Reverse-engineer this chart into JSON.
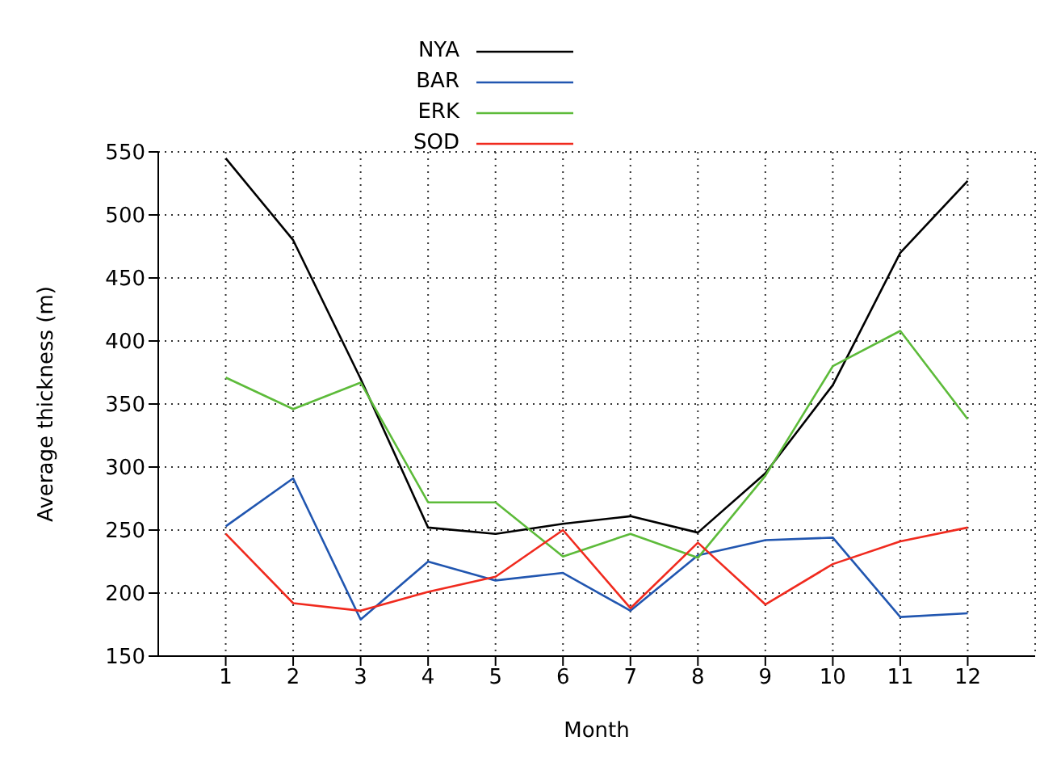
{
  "chart_data": {
    "type": "line",
    "xlabel": "Month",
    "ylabel": "Average thickness (m)",
    "x": [
      1,
      2,
      3,
      4,
      5,
      6,
      7,
      8,
      9,
      10,
      11,
      12
    ],
    "xlim": [
      0,
      13
    ],
    "xticks": [
      1,
      2,
      3,
      4,
      5,
      6,
      7,
      8,
      9,
      10,
      11,
      12
    ],
    "ylim": [
      150,
      550
    ],
    "yticks": [
      150,
      200,
      250,
      300,
      350,
      400,
      450,
      500,
      550
    ],
    "grid": true,
    "legend": "top",
    "marker": "none",
    "line_style": "solid",
    "series": [
      {
        "name": "NYA",
        "color": "#000000",
        "values": [
          545,
          480,
          370,
          252,
          247,
          255,
          261,
          248,
          295,
          365,
          470,
          527
        ]
      },
      {
        "name": "BAR",
        "color": "#2156b0",
        "values": [
          253,
          291,
          179,
          225,
          210,
          216,
          186,
          230,
          242,
          244,
          181,
          184
        ]
      },
      {
        "name": "ERK",
        "color": "#5dbb3a",
        "values": [
          371,
          346,
          367,
          272,
          272,
          229,
          247,
          228,
          293,
          380,
          408,
          338
        ]
      },
      {
        "name": "SOD",
        "color": "#f02a1e",
        "values": [
          247,
          192,
          186,
          201,
          213,
          250,
          188,
          240,
          191,
          223,
          241,
          252
        ]
      }
    ]
  }
}
